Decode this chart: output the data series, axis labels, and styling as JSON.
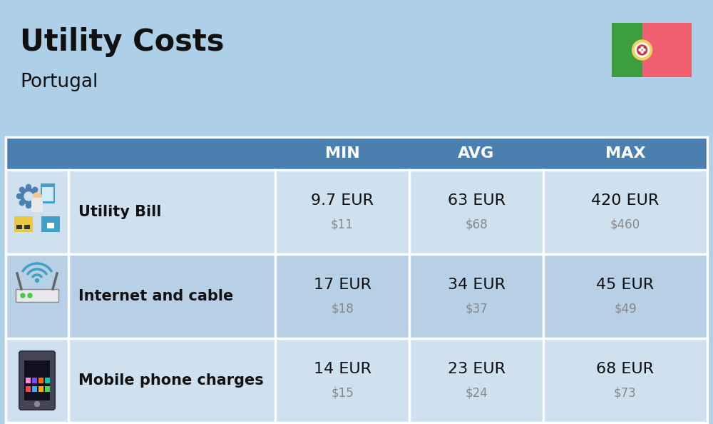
{
  "title": "Utility Costs",
  "subtitle": "Portugal",
  "background_color": "#aecfe8",
  "header_bg_color": "#4a7faf",
  "header_text_color": "#ffffff",
  "row_bg_color_1": "#cfe0ef",
  "row_bg_color_2": "#b8d0e5",
  "cell_border_color": "#ffffff",
  "text_color_primary": "#111111",
  "text_color_secondary": "#888888",
  "icon_color_blue": "#4a7faf",
  "icon_color_yellow": "#e8c840",
  "icon_color_orange": "#e8962a",
  "icon_color_teal": "#40a0c8",
  "icon_color_gray": "#888888",
  "flag_green": "#3d9e3d",
  "flag_red": "#f06070",
  "flag_yellow": "#f0d060",
  "rows": [
    {
      "label": "Utility Bill",
      "min_eur": "9.7 EUR",
      "min_usd": "$11",
      "avg_eur": "63 EUR",
      "avg_usd": "$68",
      "max_eur": "420 EUR",
      "max_usd": "$460"
    },
    {
      "label": "Internet and cable",
      "min_eur": "17 EUR",
      "min_usd": "$18",
      "avg_eur": "34 EUR",
      "avg_usd": "$37",
      "max_eur": "45 EUR",
      "max_usd": "$49"
    },
    {
      "label": "Mobile phone charges",
      "min_eur": "14 EUR",
      "min_usd": "$15",
      "avg_eur": "23 EUR",
      "avg_usd": "$24",
      "max_eur": "68 EUR",
      "max_usd": "$73"
    }
  ]
}
